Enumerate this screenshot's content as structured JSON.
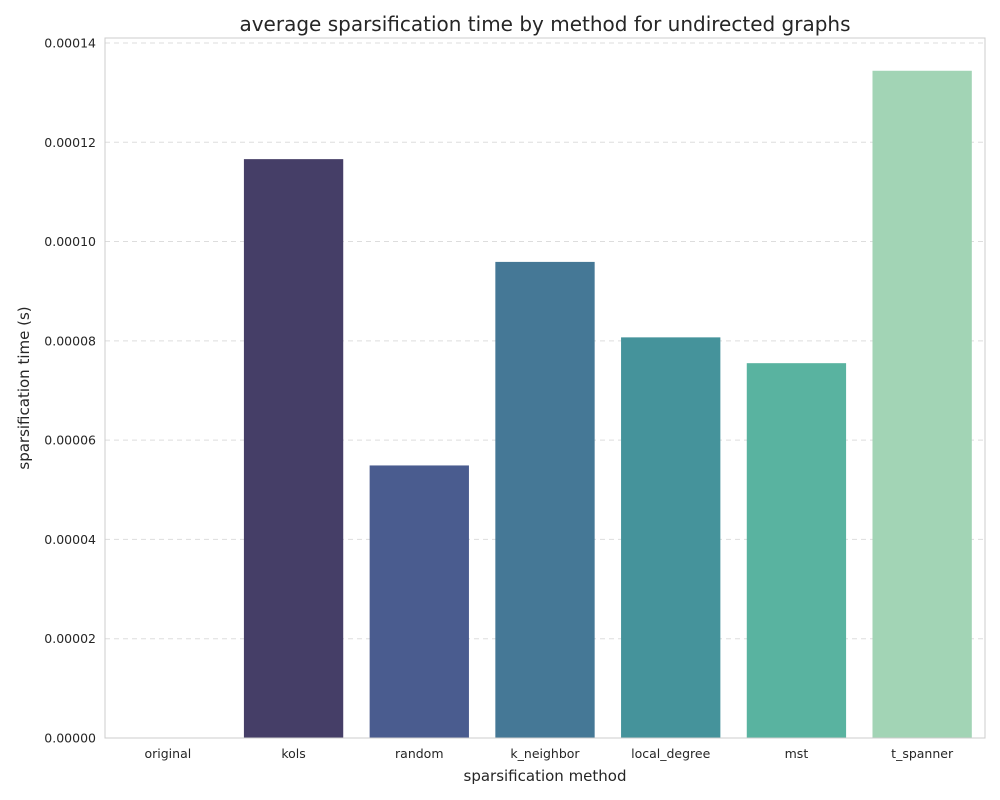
{
  "chart_data": {
    "type": "bar",
    "title": "average sparsification time by method for undirected graphs",
    "xlabel": "sparsification method",
    "ylabel": "sparsification time (s)",
    "categories": [
      "original",
      "kols",
      "random",
      "k_neighbor",
      "local_degree",
      "mst",
      "t_spanner"
    ],
    "values": [
      0.0,
      0.0001166,
      5.49e-05,
      9.59e-05,
      8.07e-05,
      7.55e-05,
      0.0001344
    ],
    "colors": [
      "#2c1e3d",
      "#453e67",
      "#4a5c8f",
      "#457896",
      "#45939b",
      "#59b3a0",
      "#a2d4b5"
    ],
    "ylim": [
      0,
      0.00014
    ],
    "yticks": [
      "0.00000",
      "0.00002",
      "0.00004",
      "0.00006",
      "0.00008",
      "0.00010",
      "0.00012",
      "0.00014"
    ],
    "grid": true
  }
}
